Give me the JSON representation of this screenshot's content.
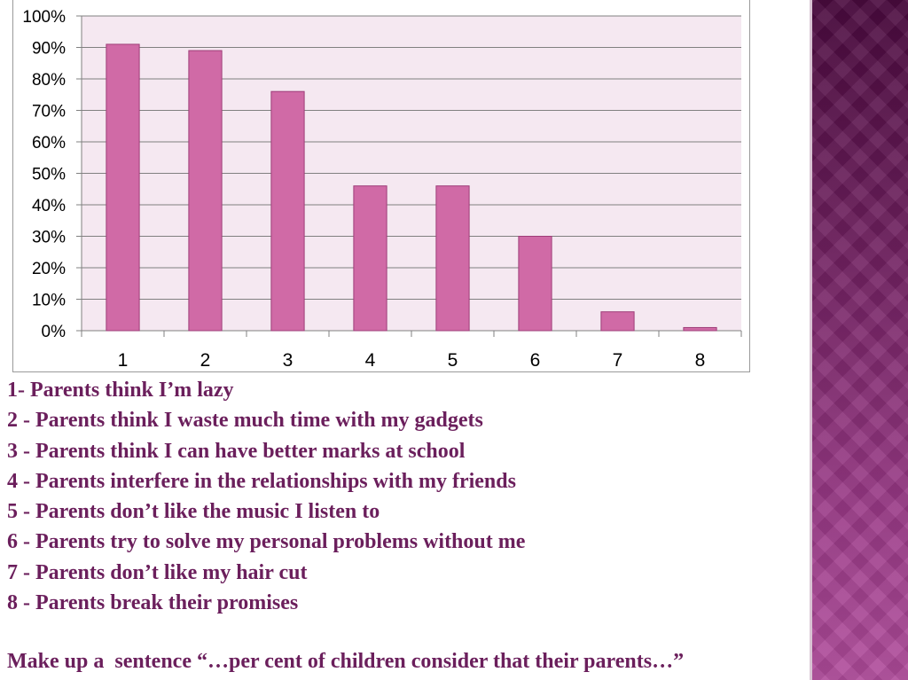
{
  "chart_data": {
    "type": "bar",
    "categories": [
      "1",
      "2",
      "3",
      "4",
      "5",
      "6",
      "7",
      "8"
    ],
    "values": [
      91,
      89,
      76,
      46,
      46,
      30,
      6,
      1
    ],
    "y_tick_labels": [
      "0%",
      "10%",
      "20%",
      "30%",
      "40%",
      "50%",
      "60%",
      "70%",
      "80%",
      "90%",
      "100%"
    ],
    "ylim": [
      0,
      100
    ],
    "grid": true,
    "colors": {
      "bar": "#d06aa6",
      "bar_border": "#9e3d78",
      "plot_background": "#f5e8f1",
      "gridline": "#808080"
    }
  },
  "legend_items": [
    "1-  Parents think I’m lazy",
    "2 - Parents think I waste much time with my gadgets",
    "3 - Parents  think I can have better marks at school",
    "4 - Parents interfere in the relationships with my  friends",
    "5 - Parents don’t like the music I listen to",
    "6 - Parents try to solve my personal problems without me",
    "7 - Parents don’t like my hair cut",
    "8 - Parents break their promises"
  ],
  "prompt": "Make up a  sentence “…per cent of children consider that their parents…”",
  "colors": {
    "text": "#6b1f5c",
    "side_band": "#6e1f5e"
  }
}
